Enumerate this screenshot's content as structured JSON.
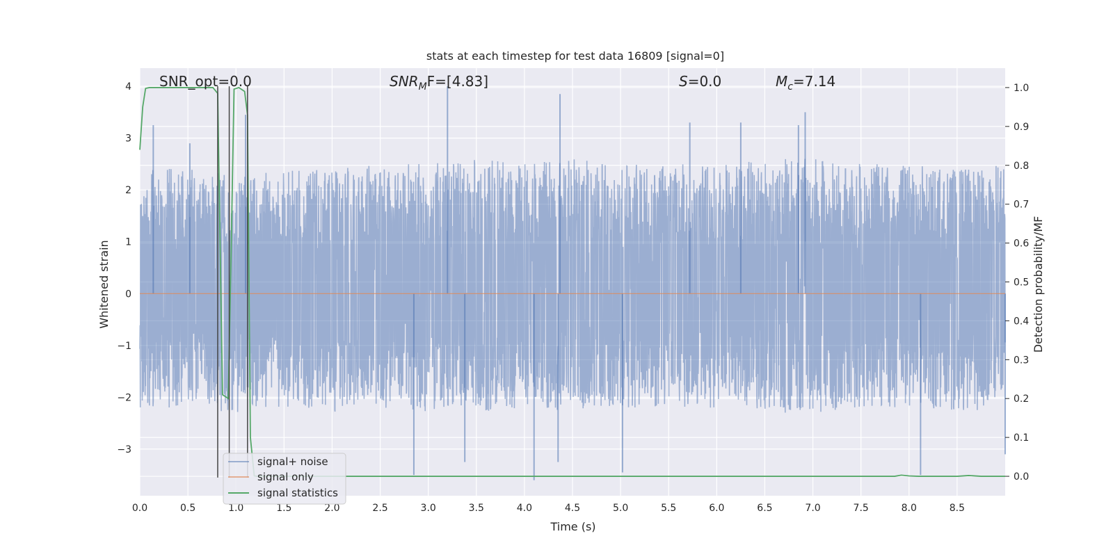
{
  "chart_data": {
    "type": "line",
    "title": "stats at each timestep for test data 16809 [signal=0]",
    "xlabel": "Time (s)",
    "ylabel": "Whitened strain",
    "y2label": "Detection probability/MF",
    "xlim": [
      0.0,
      9.0
    ],
    "ylim": [
      -3.9,
      4.35
    ],
    "y2lim": [
      -0.05,
      1.05
    ],
    "xticks": [
      "0.0",
      "0.5",
      "1.0",
      "1.5",
      "2.0",
      "2.5",
      "3.0",
      "3.5",
      "4.0",
      "4.5",
      "5.0",
      "5.5",
      "6.0",
      "6.5",
      "7.0",
      "7.5",
      "8.0",
      "8.5"
    ],
    "yticks": [
      "4",
      "3",
      "2",
      "1",
      "0",
      "−1",
      "−2",
      "−3"
    ],
    "y2ticks": [
      "1.0",
      "0.9",
      "0.8",
      "0.7",
      "0.6",
      "0.5",
      "0.4",
      "0.3",
      "0.2",
      "0.1",
      "0.0"
    ],
    "grid": true,
    "legend_position": "bottom-left",
    "annotations": [
      {
        "text": "SNR_opt=0.0"
      },
      {
        "base": "SNR",
        "sub": "M",
        "rest": "F=[4.83]"
      },
      {
        "base": "S",
        "rest": "=0.0"
      },
      {
        "base": "M",
        "sub": "c",
        "rest": "=7.14"
      }
    ],
    "series": [
      {
        "name": "signal+ noise",
        "color": "#4c72b0",
        "noise_envelope": {
          "x": [
            0.0,
            0.5,
            1.0,
            1.5,
            2.0,
            2.5,
            3.0,
            3.5,
            4.0,
            4.5,
            5.0,
            5.5,
            6.0,
            6.5,
            7.0,
            7.5,
            8.0,
            8.5,
            9.0
          ],
          "upper": [
            2.5,
            2.4,
            2.3,
            2.4,
            2.4,
            2.5,
            2.5,
            2.6,
            2.5,
            2.6,
            2.5,
            2.5,
            2.5,
            2.6,
            2.6,
            2.5,
            2.5,
            2.4,
            2.5
          ],
          "lower": [
            -2.2,
            -2.2,
            -2.3,
            -2.2,
            -2.3,
            -2.2,
            -2.3,
            -2.3,
            -2.2,
            -2.3,
            -2.2,
            -2.2,
            -2.2,
            -2.3,
            -2.3,
            -2.2,
            -2.2,
            -2.3,
            -2.2
          ]
        },
        "peaks": [
          {
            "x": 0.14,
            "y": 3.25
          },
          {
            "x": 0.52,
            "y": 2.9
          },
          {
            "x": 1.1,
            "y": 3.45
          },
          {
            "x": 3.2,
            "y": 4.0
          },
          {
            "x": 4.37,
            "y": 3.85
          },
          {
            "x": 6.92,
            "y": 3.5
          },
          {
            "x": 5.72,
            "y": 3.3
          },
          {
            "x": 6.25,
            "y": 3.3
          },
          {
            "x": 6.85,
            "y": 3.25
          },
          {
            "x": 2.85,
            "y": -3.5
          },
          {
            "x": 4.1,
            "y": -3.6
          },
          {
            "x": 8.12,
            "y": -3.5
          },
          {
            "x": 5.02,
            "y": -3.45
          },
          {
            "x": 4.35,
            "y": -3.25
          },
          {
            "x": 3.38,
            "y": -3.25
          },
          {
            "x": 9.0,
            "y": -3.1
          }
        ]
      },
      {
        "name": "signal only",
        "color": "#dd8452",
        "x": [
          0.0,
          9.0
        ],
        "y": [
          0.0,
          0.0
        ]
      },
      {
        "name": "signal statistics",
        "color": "#55a868",
        "axis": "right",
        "x": [
          0.0,
          0.03,
          0.06,
          0.1,
          0.2,
          0.3,
          0.4,
          0.5,
          0.6,
          0.7,
          0.76,
          0.81,
          0.86,
          0.92,
          0.95,
          0.98,
          1.03,
          1.09,
          1.12,
          1.15,
          1.19,
          1.22,
          1.26,
          1.4,
          2.0,
          3.0,
          4.0,
          5.0,
          6.0,
          7.0,
          7.85,
          7.92,
          8.0,
          8.1,
          8.5,
          8.62,
          8.75,
          9.0
        ],
        "y": [
          0.84,
          0.95,
          0.998,
          1.0,
          1.0,
          1.0,
          1.0,
          1.0,
          1.0,
          1.0,
          1.0,
          0.985,
          0.21,
          0.2,
          0.58,
          0.996,
          1.0,
          0.99,
          0.93,
          0.1,
          0.001,
          0.0,
          0.0,
          0.0,
          0.0,
          0.0,
          0.0,
          0.0,
          0.0,
          0.0,
          0.0,
          0.003,
          0.001,
          0.0,
          0.0,
          0.002,
          0.0,
          0.0
        ]
      }
    ],
    "vertical_lines": [
      {
        "x": 0.81,
        "ymin": -3.55,
        "ymax": 4.0
      },
      {
        "x": 0.93,
        "ymin": -3.55,
        "ymax": 4.0
      },
      {
        "x": 1.12,
        "ymin": -3.55,
        "ymax": 4.0
      }
    ]
  }
}
